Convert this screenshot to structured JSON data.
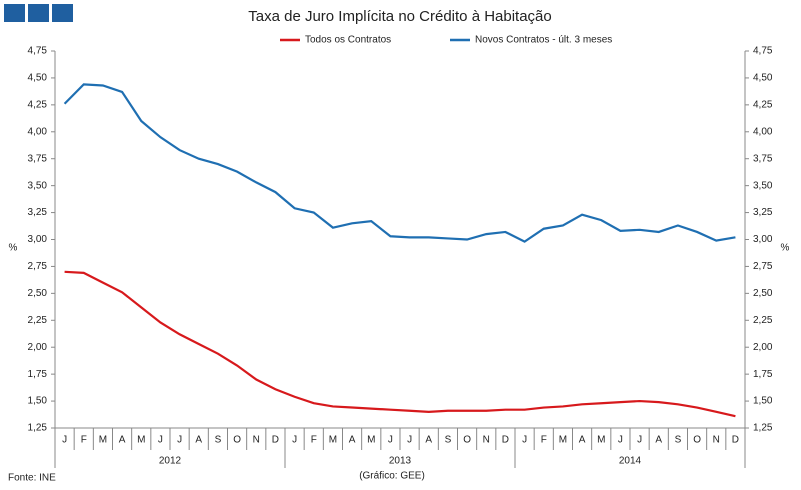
{
  "chart_data": {
    "type": "line",
    "title": "Taxa de Juro Implícita no Crédito à Habitação",
    "y_label": "%",
    "y2_label": "%",
    "source": "Fonte: INE",
    "credit": "(Gráfico: GEE)",
    "categories": [
      "J",
      "F",
      "M",
      "A",
      "M",
      "J",
      "J",
      "A",
      "S",
      "O",
      "N",
      "D",
      "J",
      "F",
      "M",
      "A",
      "M",
      "J",
      "J",
      "A",
      "S",
      "O",
      "N",
      "D",
      "J",
      "F",
      "M",
      "A",
      "M",
      "J",
      "J",
      "A",
      "S",
      "O",
      "N",
      "D"
    ],
    "x_groups": [
      "2012",
      "2013",
      "2014"
    ],
    "series": [
      {
        "name": "Todos os Contratos",
        "color": "#d7191c",
        "values": [
          2.7,
          2.69,
          2.6,
          2.51,
          2.37,
          2.23,
          2.12,
          2.03,
          1.94,
          1.83,
          1.7,
          1.61,
          1.54,
          1.48,
          1.45,
          1.44,
          1.43,
          1.42,
          1.41,
          1.4,
          1.41,
          1.41,
          1.41,
          1.42,
          1.42,
          1.44,
          1.45,
          1.47,
          1.48,
          1.49,
          1.5,
          1.49,
          1.47,
          1.44,
          1.4,
          1.36
        ]
      },
      {
        "name": "Novos Contratos - últ. 3 meses",
        "color": "#1f6fb2",
        "values": [
          4.26,
          4.44,
          4.43,
          4.37,
          4.1,
          3.95,
          3.83,
          3.75,
          3.7,
          3.63,
          3.53,
          3.44,
          3.29,
          3.25,
          3.11,
          3.15,
          3.17,
          3.03,
          3.02,
          3.02,
          3.01,
          3.0,
          3.05,
          3.07,
          2.98,
          3.1,
          3.13,
          3.23,
          3.18,
          3.08,
          3.09,
          3.07,
          3.13,
          3.07,
          2.99,
          3.02
        ]
      }
    ],
    "ylim": [
      1.25,
      4.75
    ],
    "yticks": [
      {
        "value": 1.25,
        "label": "1,25"
      },
      {
        "value": 1.5,
        "label": "1,50"
      },
      {
        "value": 1.75,
        "label": "1,75"
      },
      {
        "value": 2,
        "label": "2,00"
      },
      {
        "value": 2.25,
        "label": "2,25"
      },
      {
        "value": 2.5,
        "label": "2,50"
      },
      {
        "value": 2.75,
        "label": "2,75"
      },
      {
        "value": 3,
        "label": "3,00"
      },
      {
        "value": 3.25,
        "label": "3,25"
      },
      {
        "value": 3.5,
        "label": "3,50"
      },
      {
        "value": 3.75,
        "label": "3,75"
      },
      {
        "value": 4,
        "label": "4,00"
      },
      {
        "value": 4.25,
        "label": "4,25"
      },
      {
        "value": 4.5,
        "label": "4,50"
      },
      {
        "value": 4.75,
        "label": "4,75"
      }
    ],
    "y2lim": [
      1.25,
      4.75
    ],
    "y2ticks": [
      {
        "value": 1.25,
        "label": "1,25"
      },
      {
        "value": 1.5,
        "label": "1,50"
      },
      {
        "value": 1.75,
        "label": "1,75"
      },
      {
        "value": 2,
        "label": "2,00"
      },
      {
        "value": 2.25,
        "label": "2,25"
      },
      {
        "value": 2.5,
        "label": "2,50"
      },
      {
        "value": 2.75,
        "label": "2,75"
      },
      {
        "value": 3,
        "label": "3,00"
      },
      {
        "value": 3.25,
        "label": "3,25"
      },
      {
        "value": 3.5,
        "label": "3,50"
      },
      {
        "value": 3.75,
        "label": "3,75"
      },
      {
        "value": 4,
        "label": "4,00"
      },
      {
        "value": 4.25,
        "label": "4,25"
      },
      {
        "value": 4.5,
        "label": "4,50"
      },
      {
        "value": 4.75,
        "label": "4,75"
      }
    ],
    "grid": false,
    "legend": "top"
  }
}
